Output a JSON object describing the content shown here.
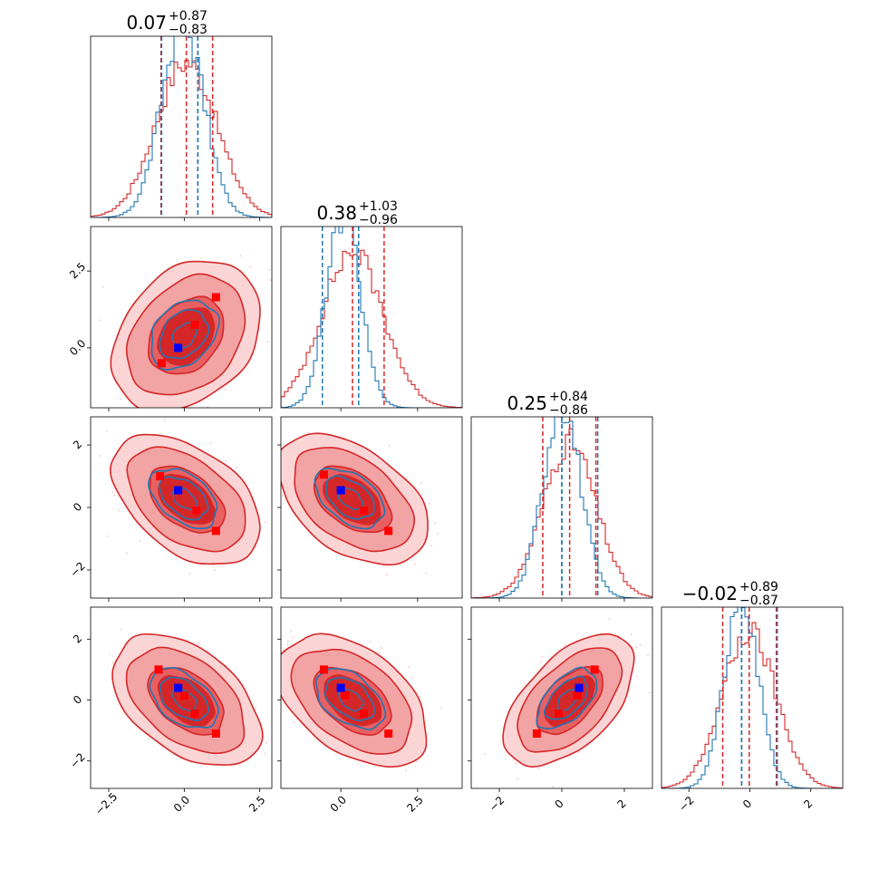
{
  "chart_data": {
    "type": "corner",
    "description_parameters": 4,
    "colors": {
      "red": "#d62728",
      "blue": "#1f77b4",
      "red_light": "#f2a3a4",
      "red_mid": "#e86062",
      "marker_red": "#ff0000",
      "marker_blue": "#0000ff",
      "scatter_red": "#f4b6bf",
      "scatter_blue": "#a9c7e6"
    },
    "params": [
      {
        "median": "0.07",
        "plus": "+0.87",
        "minus": "−0.83",
        "range": [
          -3.1,
          2.9
        ],
        "ticks": [
          -2.5,
          0.0,
          2.5
        ],
        "tick_labels": [
          "−2.5",
          "0.0",
          "2.5"
        ],
        "red": {
          "q16": -0.77,
          "q50": 0.07,
          "q84": 0.94,
          "sd": 1.0
        },
        "blue": {
          "q16": -0.75,
          "q50": 0.45,
          "q84": 0.45,
          "sd": 0.7
        }
      },
      {
        "median": "0.38",
        "plus": "+1.03",
        "minus": "−0.96",
        "range": [
          -1.95,
          3.95
        ],
        "ticks": [
          0.0,
          2.5
        ],
        "tick_labels": [
          "0.0",
          "2.5"
        ],
        "red": {
          "q16": -0.6,
          "q50": 0.38,
          "q84": 1.41,
          "sd": 1.0
        },
        "blue": {
          "q16": -0.6,
          "q50": 0.58,
          "q84": 0.58,
          "sd": 0.55
        }
      },
      {
        "median": "0.25",
        "plus": "+0.84",
        "minus": "−0.86",
        "range": [
          -2.9,
          2.9
        ],
        "ticks": [
          -2,
          0,
          2
        ],
        "tick_labels": [
          "−2",
          "0",
          "2"
        ],
        "red": {
          "q16": -0.61,
          "q50": 0.25,
          "q84": 1.09,
          "sd": 0.85
        },
        "blue": {
          "q16": 0.0,
          "q50": 0.0,
          "q84": 1.15,
          "sd": 0.6
        }
      },
      {
        "median": "−0.02",
        "plus": "+0.89",
        "minus": "−0.87",
        "range": [
          -2.9,
          3.05
        ],
        "ticks": [
          -2,
          0,
          2
        ],
        "tick_labels": [
          "−2",
          "0",
          "2"
        ],
        "red": {
          "q16": -0.89,
          "q50": -0.02,
          "q84": 0.87,
          "sd": 0.88
        },
        "blue": {
          "q16": -0.27,
          "q50": -0.27,
          "q84": 0.9,
          "sd": 0.55
        }
      }
    ],
    "red_markers": [
      {
        "row": 1,
        "col": 0,
        "points": [
          [
            -0.75,
            -0.5
          ],
          [
            0.35,
            0.75
          ],
          [
            1.05,
            1.65
          ]
        ]
      },
      {
        "row": 2,
        "col": 0,
        "points": [
          [
            -0.8,
            1.0
          ],
          [
            0.4,
            -0.1
          ],
          [
            1.05,
            -0.75
          ]
        ]
      },
      {
        "row": 2,
        "col": 1,
        "points": [
          [
            -0.55,
            1.05
          ],
          [
            0.75,
            -0.1
          ],
          [
            1.55,
            -0.75
          ]
        ]
      },
      {
        "row": 3,
        "col": 0,
        "points": [
          [
            -0.85,
            1.0
          ],
          [
            0.0,
            0.15
          ],
          [
            0.35,
            -0.45
          ],
          [
            1.05,
            -1.1
          ]
        ]
      },
      {
        "row": 3,
        "col": 1,
        "points": [
          [
            -0.55,
            1.0
          ],
          [
            0.15,
            0.15
          ],
          [
            0.75,
            -0.45
          ],
          [
            1.55,
            -1.1
          ]
        ]
      },
      {
        "row": 3,
        "col": 2,
        "points": [
          [
            -0.8,
            -1.1
          ],
          [
            -0.1,
            -0.45
          ],
          [
            0.5,
            0.15
          ],
          [
            1.05,
            1.0
          ]
        ]
      }
    ],
    "blue_markers": [
      {
        "row": 1,
        "col": 0,
        "point": [
          -0.2,
          0.0
        ]
      },
      {
        "row": 2,
        "col": 0,
        "point": [
          -0.2,
          0.55
        ]
      },
      {
        "row": 2,
        "col": 1,
        "point": [
          0.0,
          0.55
        ]
      },
      {
        "row": 3,
        "col": 0,
        "point": [
          -0.2,
          0.4
        ]
      },
      {
        "row": 3,
        "col": 1,
        "point": [
          0.0,
          0.4
        ]
      },
      {
        "row": 3,
        "col": 2,
        "point": [
          0.55,
          0.4
        ]
      }
    ],
    "correlations": {
      "1-0": 0.3,
      "2-0": -0.45,
      "2-1": -0.45,
      "3-0": -0.45,
      "3-1": -0.45,
      "3-2": 0.55
    }
  }
}
